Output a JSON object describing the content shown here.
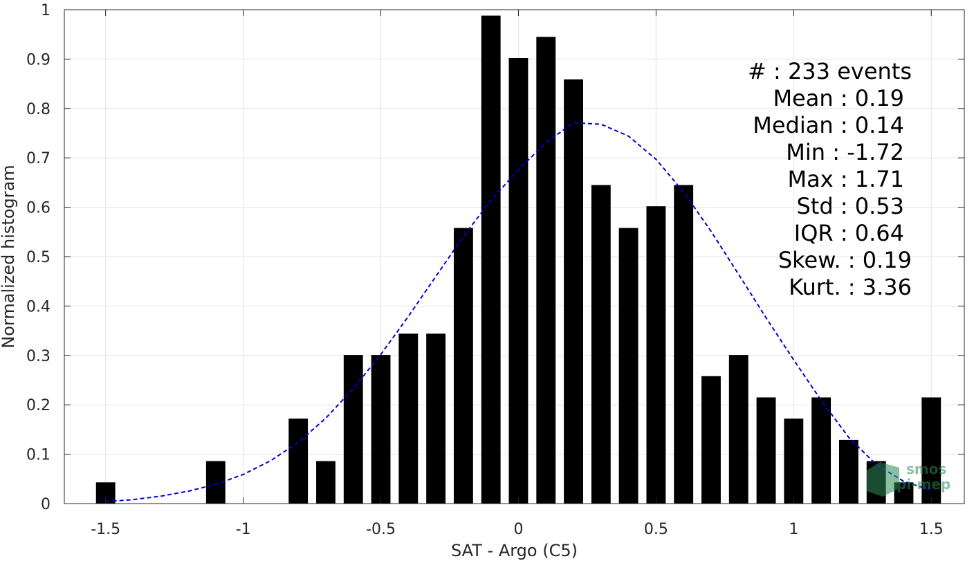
{
  "chart_data": {
    "type": "bar",
    "xlabel": "SAT - Argo (C5)",
    "ylabel": "Normalized histogram",
    "xlim": [
      -1.65,
      1.62
    ],
    "ylim": [
      0,
      1
    ],
    "x_ticks": [
      "-1.5",
      "-1",
      "-0.5",
      "0",
      "0.5",
      "1",
      "1.5"
    ],
    "x_tick_values": [
      -1.5,
      -1,
      -0.5,
      0,
      0.5,
      1,
      1.5
    ],
    "y_ticks": [
      "0",
      "0.1",
      "0.2",
      "0.3",
      "0.4",
      "0.5",
      "0.6",
      "0.7",
      "0.8",
      "0.9",
      "1"
    ],
    "y_tick_values": [
      0,
      0.1,
      0.2,
      0.3,
      0.4,
      0.5,
      0.6,
      0.7,
      0.8,
      0.9,
      1
    ],
    "grid": true,
    "bar_width": 0.07,
    "bars": {
      "x": [
        -1.5,
        -1.1,
        -0.8,
        -0.7,
        -0.6,
        -0.5,
        -0.4,
        -0.3,
        -0.2,
        -0.1,
        0.0,
        0.1,
        0.2,
        0.3,
        0.4,
        0.5,
        0.6,
        0.7,
        0.8,
        0.9,
        1.0,
        1.1,
        1.2,
        1.3,
        1.4,
        1.5
      ],
      "values": [
        0.043,
        0.086,
        0.172,
        0.086,
        0.301,
        0.301,
        0.344,
        0.344,
        0.558,
        0.988,
        0.902,
        0.945,
        0.859,
        0.645,
        0.558,
        0.602,
        0.645,
        0.258,
        0.301,
        0.215,
        0.172,
        0.215,
        0.129,
        0.086,
        0.043,
        0.215
      ],
      "color": "#000000"
    },
    "fit_curve": {
      "style": "dashed",
      "color": "#0000cc",
      "x": [
        -1.5,
        -1.4,
        -1.3,
        -1.2,
        -1.1,
        -1.0,
        -0.9,
        -0.8,
        -0.7,
        -0.6,
        -0.5,
        -0.4,
        -0.3,
        -0.2,
        -0.1,
        0.0,
        0.1,
        0.2,
        0.3,
        0.4,
        0.5,
        0.6,
        0.7,
        0.8,
        0.9,
        1.0,
        1.1,
        1.2,
        1.3,
        1.4,
        1.5
      ],
      "y": [
        0.004,
        0.008,
        0.015,
        0.025,
        0.039,
        0.059,
        0.087,
        0.124,
        0.173,
        0.233,
        0.302,
        0.379,
        0.46,
        0.541,
        0.614,
        0.676,
        0.731,
        0.771,
        0.768,
        0.744,
        0.697,
        0.631,
        0.551,
        0.464,
        0.376,
        0.291,
        0.209,
        0.134,
        0.079,
        0.045,
        0.027
      ]
    },
    "stats": [
      {
        "label": "#  : 233 events"
      },
      {
        "label": "Mean : 0.19"
      },
      {
        "label": "Median : 0.14"
      },
      {
        "label": "Min : -1.72"
      },
      {
        "label": "Max : 1.71"
      },
      {
        "label": "Std : 0.53"
      },
      {
        "label": "IQR : 0.64"
      },
      {
        "label": "Skew. : 0.19"
      },
      {
        "label": "Kurt. : 3.36"
      }
    ]
  },
  "watermark": {
    "line1": "smos",
    "line2": "pi-mep",
    "color": "#2e8b57"
  }
}
